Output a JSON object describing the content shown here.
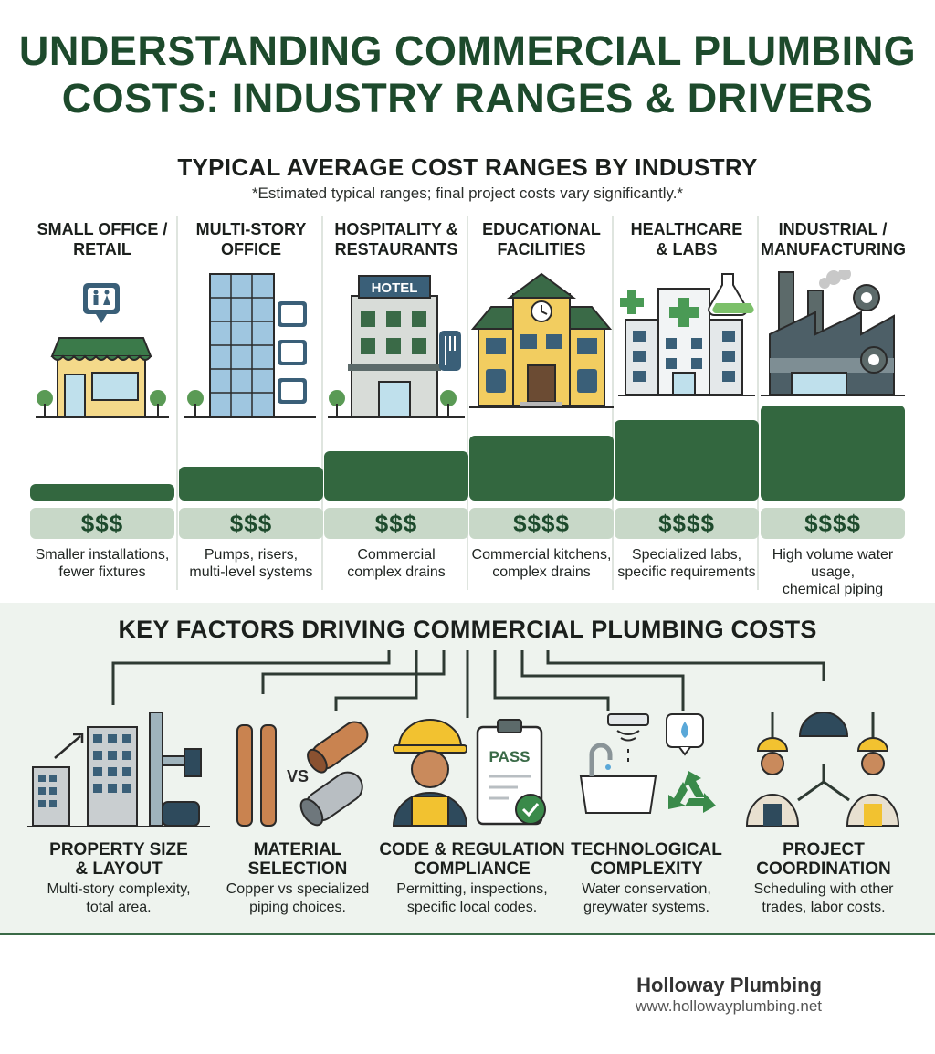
{
  "title": {
    "line1": "UNDERSTANDING COMMERCIAL PLUMBING",
    "line2": "COSTS: INDUSTRY RANGES & DRIVERS"
  },
  "cost_section": {
    "title": "TYPICAL AVERAGE COST RANGES BY INDUSTRY",
    "note": "*Estimated typical ranges; final project costs vary significantly.*",
    "industries": [
      {
        "name_lines": [
          "SMALL OFFICE /",
          "RETAIL"
        ],
        "cost": "$$$",
        "relative_level": 1,
        "desc_lines": [
          "Smaller installations,",
          "fewer fixtures"
        ],
        "icon": "storefront-icon"
      },
      {
        "name_lines": [
          "MULTI-STORY",
          "OFFICE"
        ],
        "cost": "$$$",
        "relative_level": 2,
        "desc_lines": [
          "Pumps, risers,",
          "multi-level systems"
        ],
        "icon": "office-tower-icon"
      },
      {
        "name_lines": [
          "HOSPITALITY &",
          "RESTAURANTS"
        ],
        "cost": "$$$",
        "relative_level": 3,
        "desc_lines": [
          "Commercial",
          "complex drains"
        ],
        "icon": "hotel-icon",
        "sign": "HOTEL"
      },
      {
        "name_lines": [
          "EDUCATIONAL",
          "FACILITIES"
        ],
        "cost": "$$$$",
        "relative_level": 4,
        "desc_lines": [
          "Commercial kitchens,",
          "complex drains"
        ],
        "icon": "school-icon"
      },
      {
        "name_lines": [
          "HEALTHCARE",
          "& LABS"
        ],
        "cost": "$$$$",
        "relative_level": 5,
        "desc_lines": [
          "Specialized labs,",
          "specific requirements"
        ],
        "icon": "hospital-icon"
      },
      {
        "name_lines": [
          "INDUSTRIAL /",
          "MANUFACTURING"
        ],
        "cost": "$$$$",
        "relative_level": 6,
        "desc_lines": [
          "High volume water",
          "usage,",
          "chemical piping"
        ],
        "icon": "factory-icon"
      }
    ]
  },
  "factors_section": {
    "title": "KEY FACTORS DRIVING COMMERCIAL PLUMBING COSTS",
    "factors": [
      {
        "title_lines": [
          "PROPERTY SIZE",
          "& LAYOUT"
        ],
        "desc_lines": [
          "Multi-story complexity,",
          "total area."
        ],
        "icon": "buildings-pipes-icon"
      },
      {
        "title_lines": [
          "MATERIAL",
          "SELECTION"
        ],
        "desc_lines": [
          "Copper vs specialized",
          "piping choices."
        ],
        "icon": "pipes-compare-icon",
        "compare_label": "VS"
      },
      {
        "title_lines": [
          "CODE & REGULATION",
          "COMPLIANCE"
        ],
        "desc_lines": [
          "Permitting, inspections,",
          "specific local codes."
        ],
        "icon": "inspector-clipboard-icon",
        "stamp": "PASS"
      },
      {
        "title_lines": [
          "TECHNOLOGICAL",
          "COMPLEXITY"
        ],
        "desc_lines": [
          "Water conservation,",
          "greywater systems."
        ],
        "icon": "sink-recycle-icon"
      },
      {
        "title_lines": [
          "PROJECT",
          "COORDINATION"
        ],
        "desc_lines": [
          "Scheduling with other",
          "trades, labor costs."
        ],
        "icon": "team-hierarchy-icon"
      }
    ]
  },
  "brand": {
    "name": "Holloway Plumbing",
    "url": "www.hollowayplumbing.net"
  },
  "colors": {
    "primary_green": "#1d4a2c",
    "bar_green": "#33673f",
    "chip_green": "#c8d8c8",
    "section_bg": "#eef3ee"
  }
}
